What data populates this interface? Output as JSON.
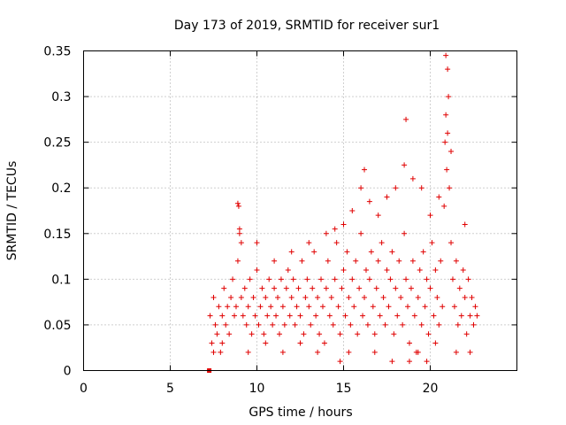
{
  "chart_data": {
    "type": "scatter",
    "title": "Day 173 of 2019, SRMTID for receiver sur1",
    "xlabel": "GPS time / hours",
    "ylabel": "SRMTID / TECUs",
    "xlim": [
      0,
      25
    ],
    "ylim": [
      0,
      0.35
    ],
    "xticks": [
      0,
      5,
      10,
      15,
      20
    ],
    "xtick_labels": [
      "0",
      "5",
      "10",
      "15",
      "20"
    ],
    "yticks": [
      0,
      0.05,
      0.1,
      0.15,
      0.2,
      0.25,
      0.3,
      0.35
    ],
    "ytick_labels": [
      "0",
      "0.05",
      "0.1",
      "0.15",
      "0.2",
      "0.25",
      "0.3",
      "0.35"
    ],
    "grid": true,
    "marker": "plus",
    "color": "#e00000",
    "series": [
      {
        "name": "sur1",
        "x": [
          7.3,
          7.4,
          7.5,
          7.6,
          7.7,
          7.8,
          7.9,
          8.0,
          8.1,
          8.2,
          8.3,
          8.4,
          8.5,
          8.6,
          8.7,
          8.8,
          8.9,
          8.95,
          9.0,
          9.1,
          9.2,
          9.3,
          9.4,
          9.5,
          9.6,
          9.7,
          9.8,
          9.9,
          10.0,
          10.1,
          10.2,
          10.3,
          10.4,
          10.5,
          10.6,
          10.7,
          10.8,
          10.9,
          11.0,
          11.1,
          11.2,
          11.3,
          11.4,
          11.5,
          11.6,
          11.7,
          11.8,
          11.9,
          12.0,
          12.1,
          12.2,
          12.3,
          12.4,
          12.5,
          12.6,
          12.7,
          12.8,
          12.9,
          13.0,
          13.1,
          13.2,
          13.3,
          13.4,
          13.5,
          13.6,
          13.7,
          13.8,
          13.9,
          14.0,
          14.1,
          14.2,
          14.3,
          14.4,
          14.5,
          14.6,
          14.7,
          14.8,
          14.9,
          15.0,
          15.1,
          15.2,
          15.3,
          15.4,
          15.5,
          15.6,
          15.7,
          15.8,
          15.9,
          16.0,
          16.1,
          16.2,
          16.3,
          16.4,
          16.5,
          16.6,
          16.7,
          16.8,
          16.9,
          17.0,
          17.1,
          17.2,
          17.3,
          17.4,
          17.5,
          17.6,
          17.7,
          17.8,
          17.9,
          18.0,
          18.1,
          18.2,
          18.3,
          18.4,
          18.5,
          18.6,
          18.7,
          18.8,
          18.9,
          19.0,
          19.1,
          19.2,
          19.3,
          19.4,
          19.5,
          19.6,
          19.7,
          19.8,
          19.9,
          20.0,
          20.1,
          20.2,
          20.3,
          20.4,
          20.5,
          20.6,
          20.7,
          20.8,
          20.85,
          20.9,
          20.95,
          21.0,
          21.05,
          21.1,
          21.2,
          21.3,
          21.4,
          21.5,
          21.6,
          21.7,
          21.8,
          21.9,
          22.0,
          22.1,
          22.2,
          22.3,
          22.4,
          22.5,
          22.6,
          22.7,
          8.9,
          9.0,
          9.1,
          10.0,
          11.0,
          12.0,
          13.0,
          14.0,
          14.5,
          15.0,
          15.5,
          16.0,
          16.2,
          16.5,
          17.0,
          17.5,
          18.0,
          18.5,
          18.6,
          19.0,
          19.5,
          20.0,
          20.5,
          20.9,
          21.0,
          21.2,
          22.0,
          7.5,
          8.0,
          9.5,
          10.5,
          11.5,
          12.5,
          13.5,
          14.8,
          15.3,
          16.8,
          17.8,
          18.8,
          19.3,
          19.8,
          20.3,
          21.5,
          22.3
        ],
        "y": [
          0.06,
          0.03,
          0.08,
          0.05,
          0.04,
          0.07,
          0.02,
          0.06,
          0.09,
          0.05,
          0.07,
          0.04,
          0.08,
          0.1,
          0.06,
          0.07,
          0.12,
          0.18,
          0.15,
          0.08,
          0.06,
          0.09,
          0.05,
          0.07,
          0.1,
          0.04,
          0.08,
          0.06,
          0.11,
          0.05,
          0.07,
          0.09,
          0.04,
          0.08,
          0.06,
          0.1,
          0.07,
          0.05,
          0.09,
          0.06,
          0.08,
          0.04,
          0.1,
          0.07,
          0.05,
          0.09,
          0.11,
          0.06,
          0.08,
          0.1,
          0.05,
          0.07,
          0.09,
          0.06,
          0.12,
          0.04,
          0.08,
          0.1,
          0.07,
          0.05,
          0.09,
          0.13,
          0.06,
          0.08,
          0.04,
          0.1,
          0.07,
          0.03,
          0.09,
          0.12,
          0.06,
          0.08,
          0.05,
          0.1,
          0.14,
          0.07,
          0.04,
          0.09,
          0.11,
          0.06,
          0.13,
          0.08,
          0.05,
          0.1,
          0.07,
          0.12,
          0.04,
          0.09,
          0.15,
          0.06,
          0.08,
          0.11,
          0.05,
          0.1,
          0.13,
          0.07,
          0.04,
          0.09,
          0.12,
          0.06,
          0.14,
          0.08,
          0.05,
          0.11,
          0.07,
          0.1,
          0.13,
          0.04,
          0.09,
          0.06,
          0.12,
          0.08,
          0.05,
          0.15,
          0.1,
          0.07,
          0.03,
          0.09,
          0.12,
          0.06,
          0.02,
          0.08,
          0.11,
          0.05,
          0.13,
          0.07,
          0.1,
          0.04,
          0.09,
          0.14,
          0.06,
          0.11,
          0.08,
          0.05,
          0.12,
          0.07,
          0.18,
          0.25,
          0.28,
          0.22,
          0.26,
          0.3,
          0.2,
          0.14,
          0.1,
          0.07,
          0.12,
          0.05,
          0.09,
          0.06,
          0.11,
          0.08,
          0.04,
          0.1,
          0.06,
          0.08,
          0.05,
          0.07,
          0.06,
          0.183,
          0.155,
          0.14,
          0.14,
          0.12,
          0.13,
          0.14,
          0.15,
          0.155,
          0.16,
          0.175,
          0.2,
          0.22,
          0.185,
          0.17,
          0.19,
          0.2,
          0.225,
          0.275,
          0.21,
          0.2,
          0.17,
          0.19,
          0.345,
          0.33,
          0.24,
          0.16,
          0.02,
          0.03,
          0.02,
          0.03,
          0.02,
          0.03,
          0.02,
          0.01,
          0.02,
          0.02,
          0.01,
          0.01,
          0.02,
          0.01,
          0.03,
          0.02,
          0.02
        ]
      }
    ],
    "marker_points": [
      {
        "x": 7.25,
        "y": 0
      }
    ]
  }
}
